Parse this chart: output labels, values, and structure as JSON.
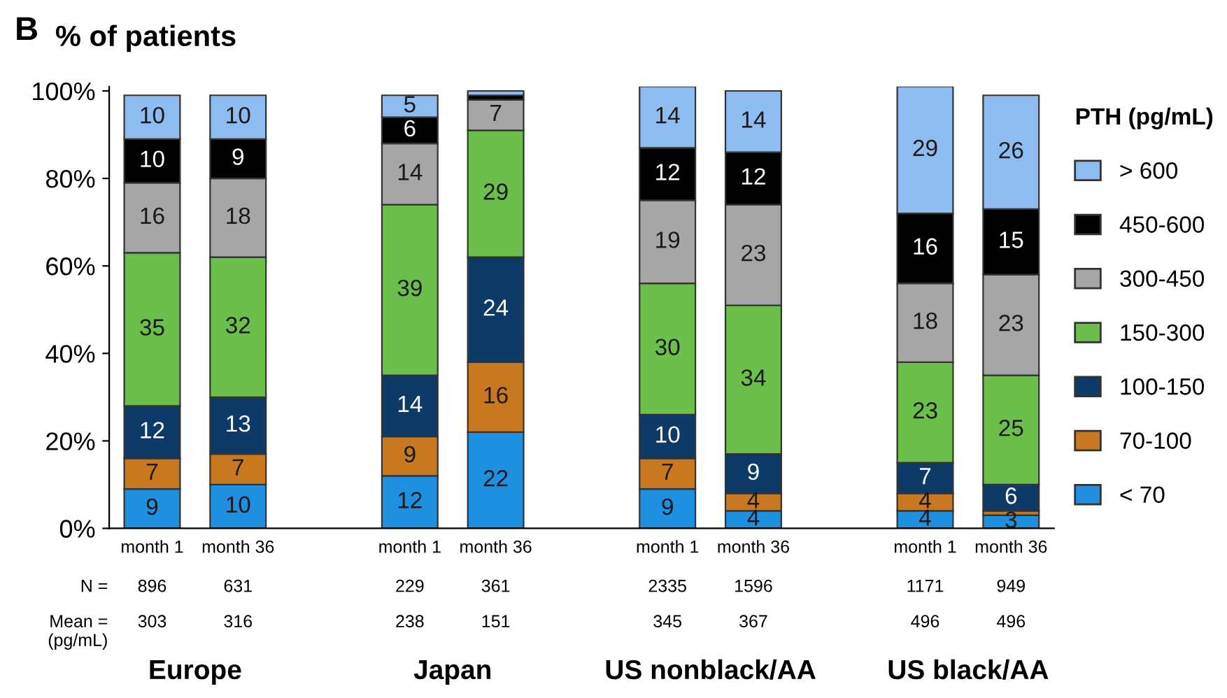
{
  "chart_data": {
    "type": "bar",
    "stacked": true,
    "title": "B",
    "ylabel": "% of patients",
    "legend_title": "PTH (pg/mL)",
    "legend": "right",
    "categories": [
      "month 1",
      "month 36",
      null,
      "month 1",
      "month 36",
      null,
      "month 1",
      "month 36",
      null,
      "month 1",
      "month 36"
    ],
    "ylim": [
      0,
      101
    ],
    "yticks": [
      {
        "value": 0,
        "label": "0%"
      },
      {
        "value": 20,
        "label": "20%"
      },
      {
        "value": 40,
        "label": "40%"
      },
      {
        "value": 60,
        "label": "60%"
      },
      {
        "value": 80,
        "label": "80%"
      },
      {
        "value": 100,
        "label": "100%"
      }
    ],
    "grid": false,
    "series": [
      {
        "name": "< 70",
        "color": "#1f8fe0",
        "values": [
          9,
          10,
          null,
          12,
          22,
          null,
          9,
          4,
          null,
          4,
          3
        ],
        "value_labels": [
          "9",
          "10",
          null,
          "12",
          "22",
          null,
          "9",
          "4",
          null,
          "4",
          "3"
        ]
      },
      {
        "name": "70-100",
        "color": "#c8781e",
        "values": [
          7,
          7,
          null,
          9,
          16,
          null,
          7,
          4,
          null,
          4,
          1
        ],
        "value_labels": [
          "7",
          "7",
          null,
          "9",
          "16",
          null,
          "7",
          "4",
          null,
          "4",
          null
        ]
      },
      {
        "name": "100-150",
        "color": "#0d3a66",
        "values": [
          12,
          13,
          null,
          14,
          24,
          null,
          10,
          9,
          null,
          7,
          6
        ],
        "value_labels": [
          "12",
          "13",
          null,
          "14",
          "24",
          null,
          "10",
          "9",
          null,
          "7",
          "6"
        ]
      },
      {
        "name": "150-300",
        "color": "#6cbf4a",
        "values": [
          35,
          32,
          null,
          39,
          29,
          null,
          30,
          34,
          null,
          23,
          25
        ],
        "value_labels": [
          "35",
          "32",
          null,
          "39",
          "29",
          null,
          "30",
          "34",
          null,
          "23",
          "25"
        ]
      },
      {
        "name": "300-450",
        "color": "#a6a6a6",
        "values": [
          16,
          18,
          null,
          14,
          7,
          null,
          19,
          23,
          null,
          18,
          23
        ],
        "value_labels": [
          "16",
          "18",
          null,
          "14",
          "7",
          null,
          "19",
          "23",
          null,
          "18",
          "23"
        ]
      },
      {
        "name": "450-600",
        "color": "#000000",
        "values": [
          10,
          9,
          null,
          6,
          1,
          null,
          12,
          12,
          null,
          16,
          15
        ],
        "value_labels": [
          "10",
          "9",
          null,
          "6",
          null,
          null,
          "12",
          "12",
          null,
          "16",
          "15"
        ]
      },
      {
        "name": "> 600",
        "color": "#8fbcf0",
        "values": [
          10,
          10,
          null,
          5,
          1,
          null,
          14,
          14,
          null,
          29,
          26
        ],
        "value_labels": [
          "10",
          "10",
          null,
          "5",
          null,
          null,
          "14",
          "14",
          null,
          "29",
          "26"
        ]
      }
    ],
    "annotations": [
      "N =",
      "896",
      "631",
      "229",
      "361",
      "2335",
      "1596",
      "1171",
      "949",
      "Mean =\n(pg/mL)",
      "303",
      "316",
      "238",
      "151",
      "345",
      "367",
      "496",
      "496",
      "Europe",
      "Japan",
      "US nonblack/AA",
      "US black/AA"
    ]
  }
}
